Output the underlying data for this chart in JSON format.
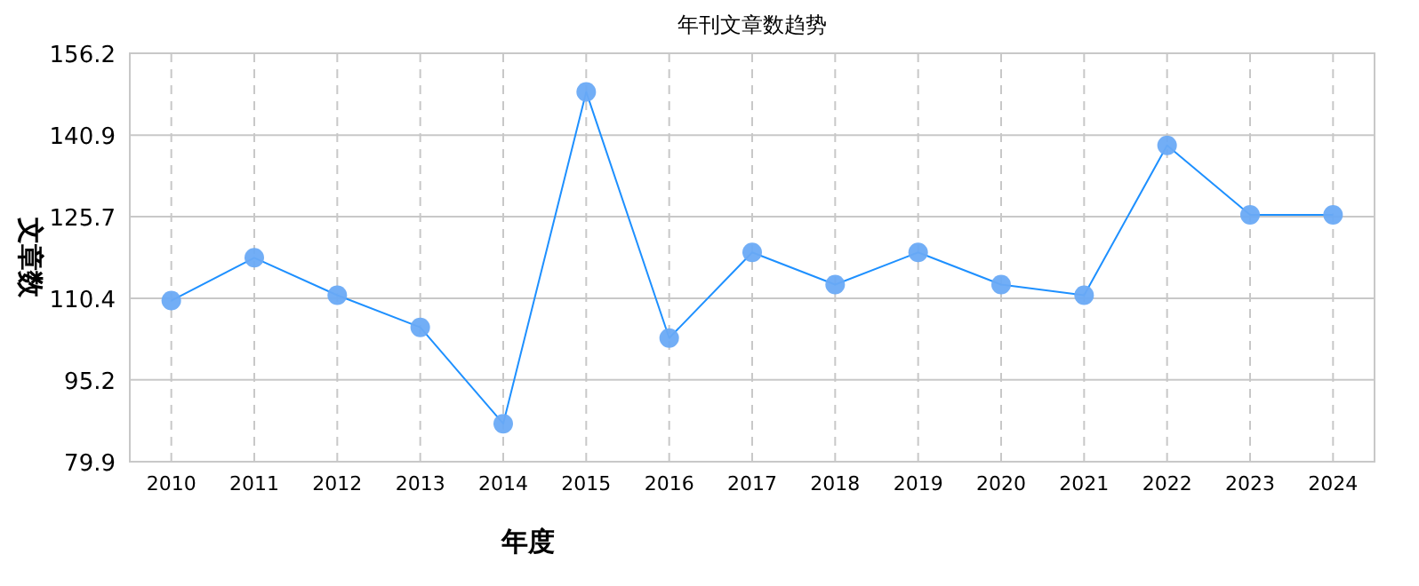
{
  "chart_data": {
    "type": "line",
    "title": "年刊文章数趋势",
    "xlabel": "年度",
    "ylabel": "文章数",
    "categories": [
      "2010",
      "2011",
      "2012",
      "2013",
      "2014",
      "2015",
      "2016",
      "2017",
      "2018",
      "2019",
      "2020",
      "2021",
      "2022",
      "2023",
      "2024"
    ],
    "series": [
      {
        "color": "#1e90ff",
        "values": [
          110,
          118,
          111,
          105,
          87,
          149,
          103,
          119,
          113,
          119,
          113,
          111,
          139,
          126,
          126
        ]
      }
    ],
    "ylim": [
      79.9,
      156.2
    ],
    "yticks": [
      79.9,
      95.2,
      110.4,
      125.7,
      140.9,
      156.2
    ],
    "grid": true,
    "marker": "circle",
    "line_style": "solid"
  }
}
